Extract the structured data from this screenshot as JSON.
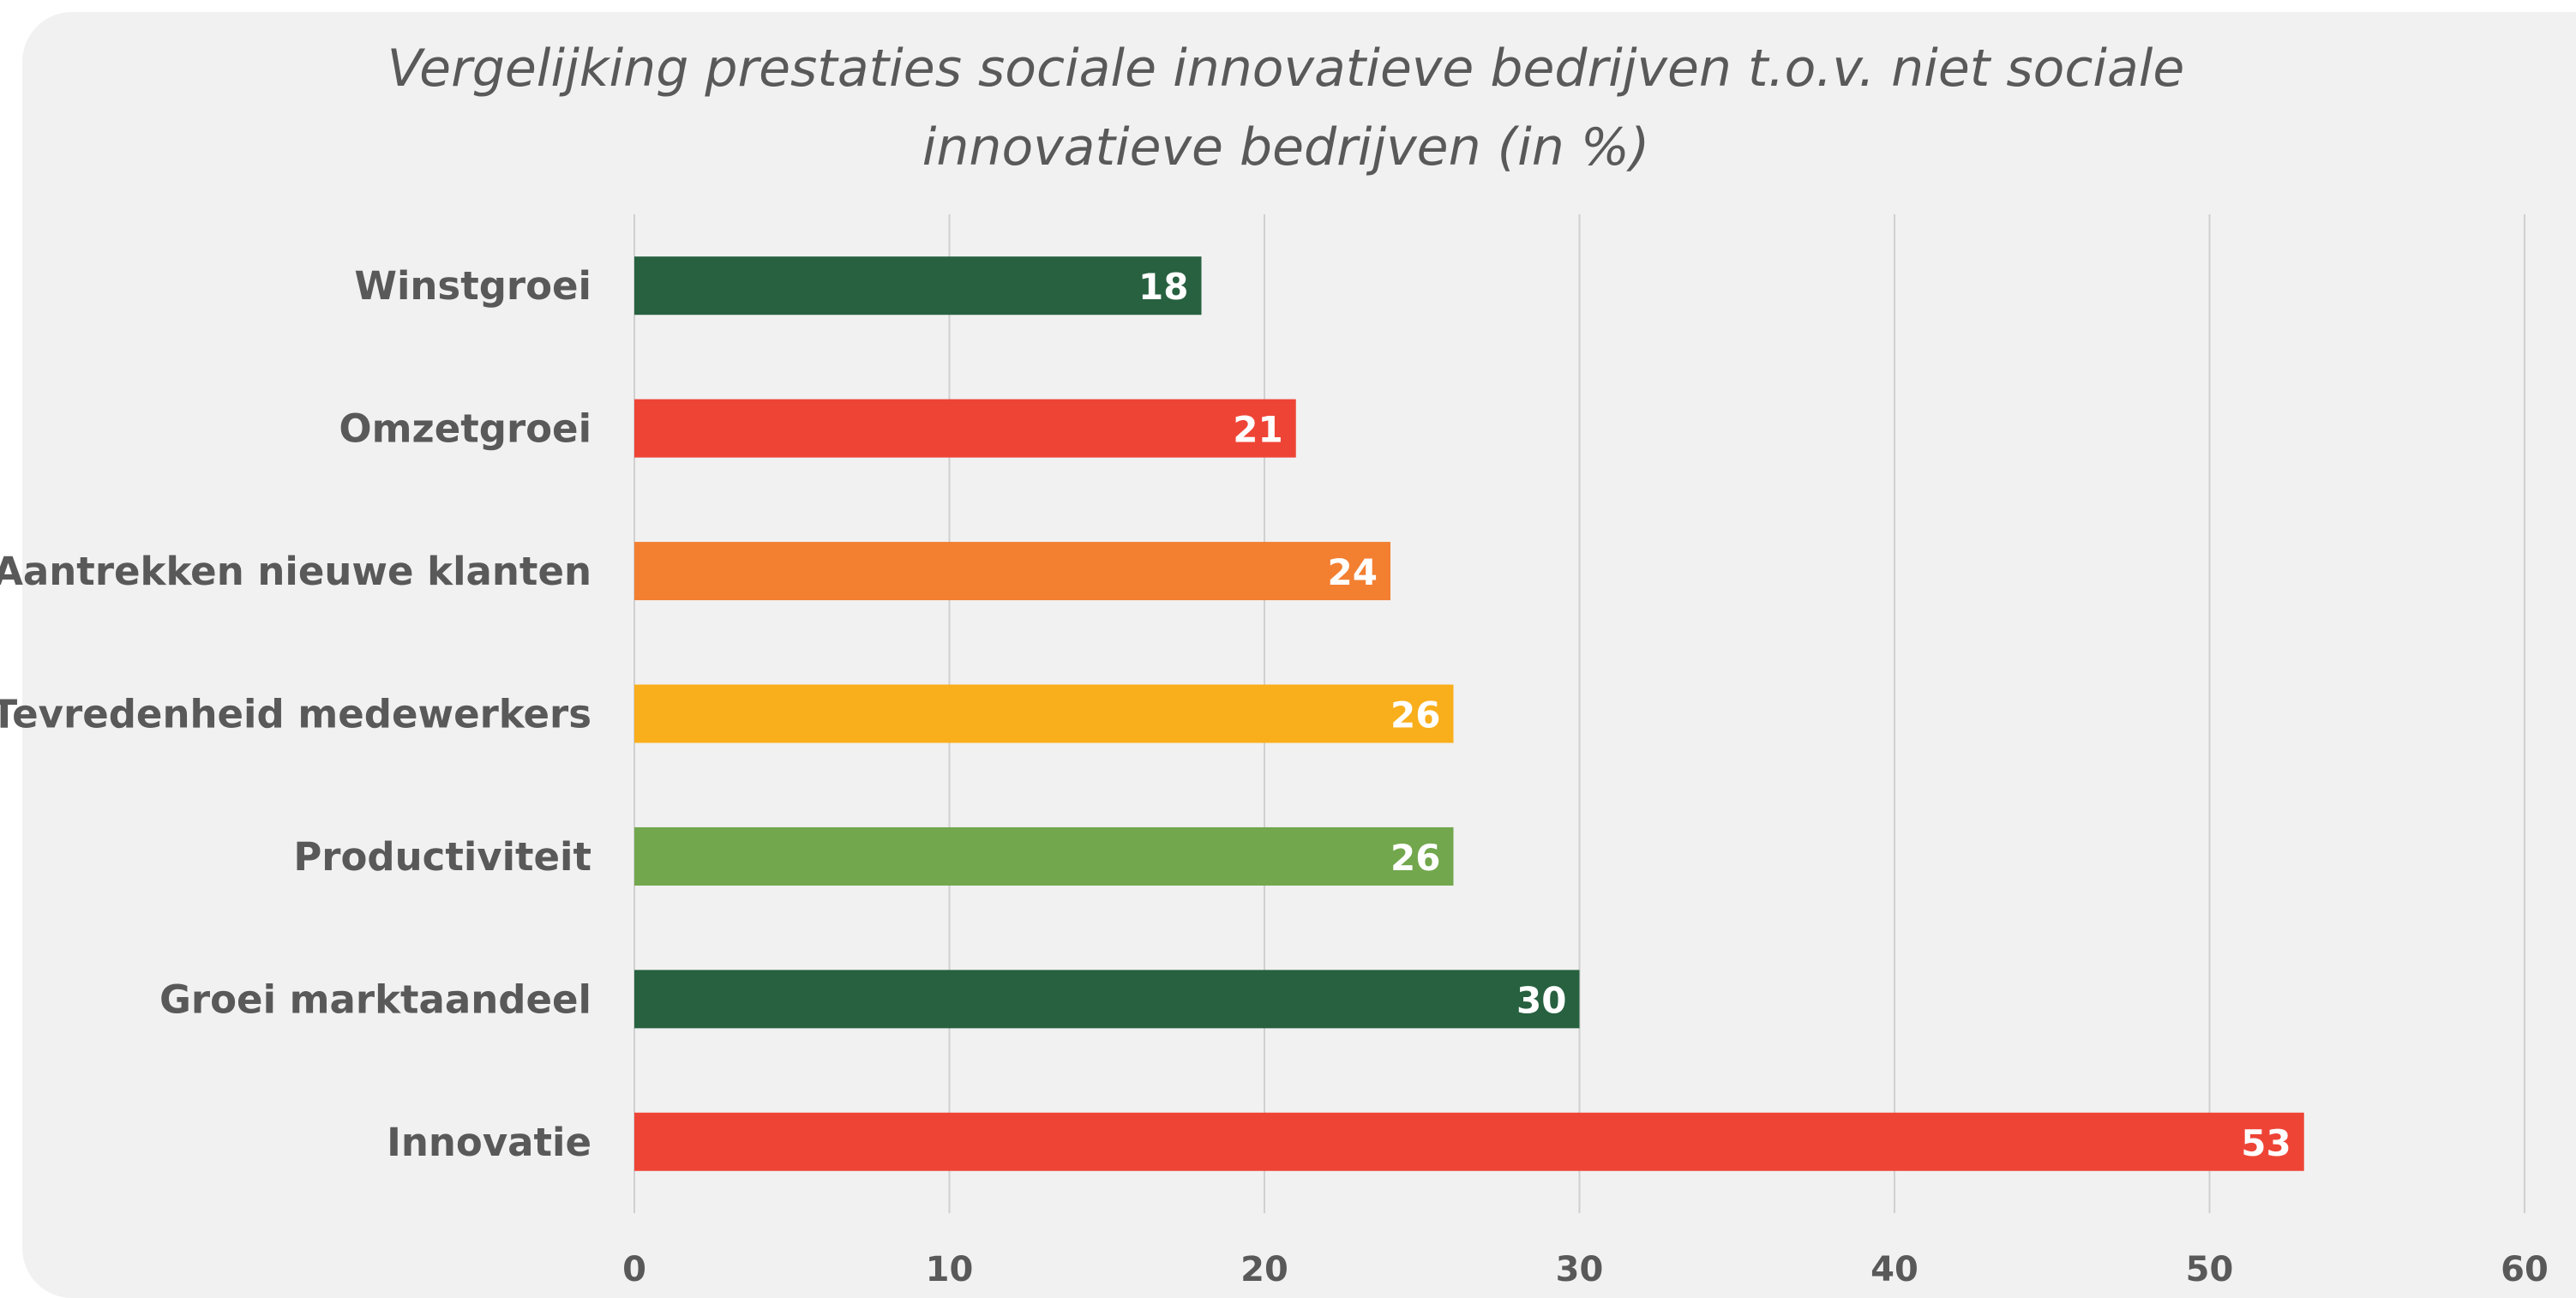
{
  "chart_data": {
    "type": "bar",
    "orientation": "horizontal",
    "title": "Vergelijking prestaties sociale innovatieve bedrijven t.o.v. niet sociale innovatieve bedrijven (in %)",
    "title_lines": [
      "Vergelijking prestaties sociale innovatieve bedrijven t.o.v. niet sociale",
      "innovatieve bedrijven (in %)"
    ],
    "categories": [
      "Winstgroei",
      "Omzetgroei",
      "Aantrekken nieuwe klanten",
      "Tevredenheid medewerkers",
      "Productiviteit",
      "Groei marktaandeel",
      "Innovatie"
    ],
    "values": [
      18,
      21,
      24,
      26,
      26,
      30,
      53
    ],
    "bar_colors": [
      "#276140",
      "#ee4436",
      "#f37f31",
      "#f9ae1b",
      "#72a74d",
      "#276140",
      "#ee4436"
    ],
    "xlim": [
      0,
      60
    ],
    "xticks": [
      0,
      10,
      20,
      30,
      40,
      50,
      60
    ],
    "xlabel": "",
    "ylabel": "",
    "grid": "vertical",
    "legend": "none",
    "data_labels": "inside-end"
  }
}
